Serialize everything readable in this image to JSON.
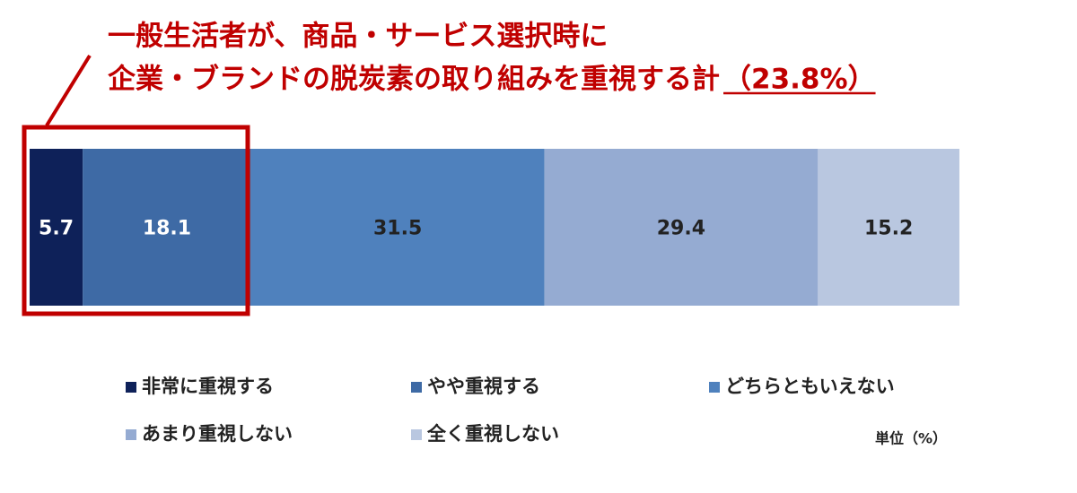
{
  "chart_data": {
    "type": "stacked-bar",
    "title": [
      "一般生活者が、商品・サービス選択時に",
      "企業・ブランドの脱炭素の取り組みを重視する計"
    ],
    "annotation": "（23.8%）",
    "unit_label": "単位（%）",
    "orientation": "horizontal",
    "categories": [
      null
    ],
    "xlim": [
      0,
      100
    ],
    "series": [
      {
        "name": "非常に重視する",
        "color": "#0e2159",
        "values": [
          5.7
        ]
      },
      {
        "name": "やや重視する",
        "color": "#3e6aa5",
        "values": [
          18.1
        ]
      },
      {
        "name": "どちらともいえない",
        "color": "#4f81bd",
        "values": [
          31.5
        ]
      },
      {
        "name": "あまり重視しない",
        "color": "#95abd2",
        "values": [
          29.4
        ]
      },
      {
        "name": "全く重視しない",
        "color": "#b9c7e0",
        "values": [
          15.2
        ]
      }
    ]
  }
}
